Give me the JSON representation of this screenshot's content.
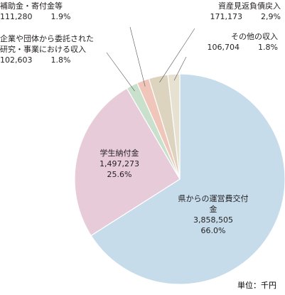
{
  "chart_data": {
    "type": "pie",
    "categories": [
      "県からの運営費交付金",
      "学生納付金",
      "企業や団体から委託された\n研究・事業における収入",
      "補助金・寄付金等",
      "資産見返負債戻入",
      "その他の収入"
    ],
    "values": [
      3858505,
      1497273,
      102603,
      111280,
      171173,
      106704
    ],
    "value_labels": [
      "3,858,505",
      "1,497,273",
      "102,603",
      "111,280",
      "171,173",
      "106,704"
    ],
    "percent_labels": [
      "66.0%",
      "25.6%",
      "1.8%",
      "1.9%",
      "2,9%",
      "1.8%"
    ],
    "colors": [
      "#c6dceb",
      "#e8cbd9",
      "#c9e0cd",
      "#efc6b9",
      "#ddd4c0",
      "#e7e1d1"
    ],
    "note": "単位：千円"
  }
}
